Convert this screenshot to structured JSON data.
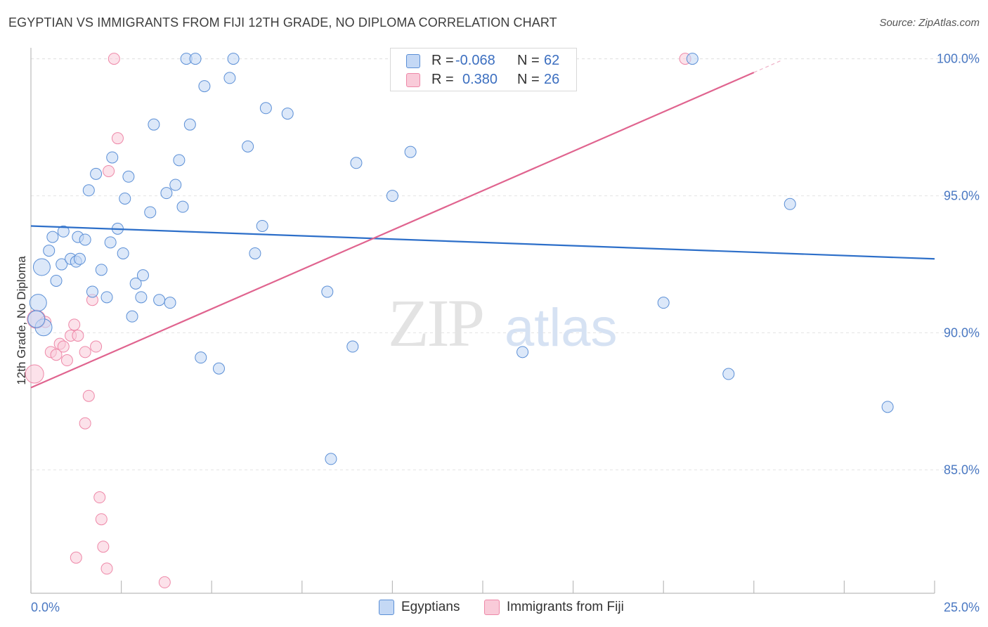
{
  "title": "EGYPTIAN VS IMMIGRANTS FROM FIJI 12TH GRADE, NO DIPLOMA CORRELATION CHART",
  "source": "Source: ZipAtlas.com",
  "watermark": {
    "zip": "ZIP",
    "atlas": "atlas"
  },
  "legend": {
    "r_label": "R =",
    "n_label": "N =",
    "series": [
      {
        "r": "-0.068",
        "n": "62"
      },
      {
        "r": "0.380",
        "n": "26"
      }
    ]
  },
  "chart_data": {
    "type": "scatter",
    "title": "EGYPTIAN VS IMMIGRANTS FROM FIJI 12TH GRADE, NO DIPLOMA CORRELATION CHART",
    "xlabel": "",
    "ylabel": "12th Grade, No Diploma",
    "xlim": [
      0,
      25
    ],
    "ylim": [
      80.5,
      100.4
    ],
    "x_tick_labels": [
      "0.0%",
      "25.0%"
    ],
    "y_ticks": [
      85,
      90,
      95,
      100
    ],
    "y_tick_labels": [
      "85.0%",
      "90.0%",
      "95.0%",
      "100.0%"
    ],
    "colors": {
      "Egyptians": "#5b8fd6",
      "Immigrants from Fiji": "#ee88a8",
      "egypt_line": "#2d6fc9",
      "fiji_line": "#e0648f"
    },
    "series": [
      {
        "name": "Egyptians",
        "trend": {
          "x0": 0,
          "y0": 93.9,
          "x1": 25,
          "y1": 92.7
        },
        "points": [
          [
            0.2,
            91.1
          ],
          [
            0.35,
            90.2
          ],
          [
            0.3,
            92.4
          ],
          [
            0.5,
            93.0
          ],
          [
            0.6,
            93.5
          ],
          [
            0.7,
            91.9
          ],
          [
            0.85,
            92.5
          ],
          [
            0.9,
            93.7
          ],
          [
            1.1,
            92.7
          ],
          [
            1.25,
            92.6
          ],
          [
            1.3,
            93.5
          ],
          [
            1.5,
            93.4
          ],
          [
            1.6,
            95.2
          ],
          [
            1.7,
            91.5
          ],
          [
            1.8,
            95.8
          ],
          [
            1.95,
            92.3
          ],
          [
            2.1,
            91.3
          ],
          [
            2.2,
            93.3
          ],
          [
            2.25,
            96.4
          ],
          [
            2.4,
            93.8
          ],
          [
            2.55,
            92.9
          ],
          [
            2.6,
            94.9
          ],
          [
            2.7,
            95.7
          ],
          [
            2.8,
            90.6
          ],
          [
            2.9,
            91.8
          ],
          [
            3.05,
            91.3
          ],
          [
            3.1,
            92.1
          ],
          [
            3.3,
            94.4
          ],
          [
            3.4,
            97.6
          ],
          [
            3.55,
            91.2
          ],
          [
            3.75,
            95.1
          ],
          [
            3.85,
            91.1
          ],
          [
            4.0,
            95.4
          ],
          [
            4.1,
            96.3
          ],
          [
            4.2,
            94.6
          ],
          [
            4.3,
            100.0
          ],
          [
            4.4,
            97.6
          ],
          [
            4.55,
            100.0
          ],
          [
            4.7,
            89.1
          ],
          [
            4.8,
            99.0
          ],
          [
            5.2,
            88.7
          ],
          [
            5.5,
            99.3
          ],
          [
            5.6,
            100.0
          ],
          [
            6.0,
            96.8
          ],
          [
            6.2,
            92.9
          ],
          [
            6.4,
            93.9
          ],
          [
            6.5,
            98.2
          ],
          [
            7.1,
            98.0
          ],
          [
            8.2,
            91.5
          ],
          [
            8.3,
            85.4
          ],
          [
            8.9,
            89.5
          ],
          [
            9.0,
            96.2
          ],
          [
            10.0,
            95.0
          ],
          [
            10.5,
            96.6
          ],
          [
            13.6,
            89.3
          ],
          [
            17.5,
            91.1
          ],
          [
            18.3,
            100.0
          ],
          [
            19.3,
            88.5
          ],
          [
            21.0,
            94.7
          ],
          [
            23.7,
            87.3
          ],
          [
            0.15,
            90.5
          ],
          [
            1.35,
            92.7
          ]
        ]
      },
      {
        "name": "Immigrants from Fiji",
        "trend": {
          "x0": 0,
          "y0": 88.0,
          "x1": 20.0,
          "y1": 99.5
        },
        "points": [
          [
            0.1,
            88.5
          ],
          [
            0.15,
            90.5
          ],
          [
            0.4,
            90.4
          ],
          [
            0.55,
            89.3
          ],
          [
            0.7,
            89.2
          ],
          [
            0.8,
            89.6
          ],
          [
            0.9,
            89.5
          ],
          [
            1.0,
            89.0
          ],
          [
            1.1,
            89.9
          ],
          [
            1.2,
            90.3
          ],
          [
            1.3,
            89.9
          ],
          [
            1.5,
            89.3
          ],
          [
            1.6,
            87.7
          ],
          [
            1.7,
            91.2
          ],
          [
            1.8,
            89.5
          ],
          [
            1.9,
            84.0
          ],
          [
            1.95,
            83.2
          ],
          [
            2.15,
            95.9
          ],
          [
            2.4,
            97.1
          ],
          [
            2.3,
            100.0
          ],
          [
            1.5,
            86.7
          ],
          [
            1.25,
            81.8
          ],
          [
            2.0,
            82.2
          ],
          [
            2.1,
            81.4
          ],
          [
            3.7,
            80.9
          ],
          [
            18.1,
            100.0
          ]
        ]
      }
    ]
  },
  "bottom_legend": [
    "Egyptians",
    "Immigrants from Fiji"
  ]
}
